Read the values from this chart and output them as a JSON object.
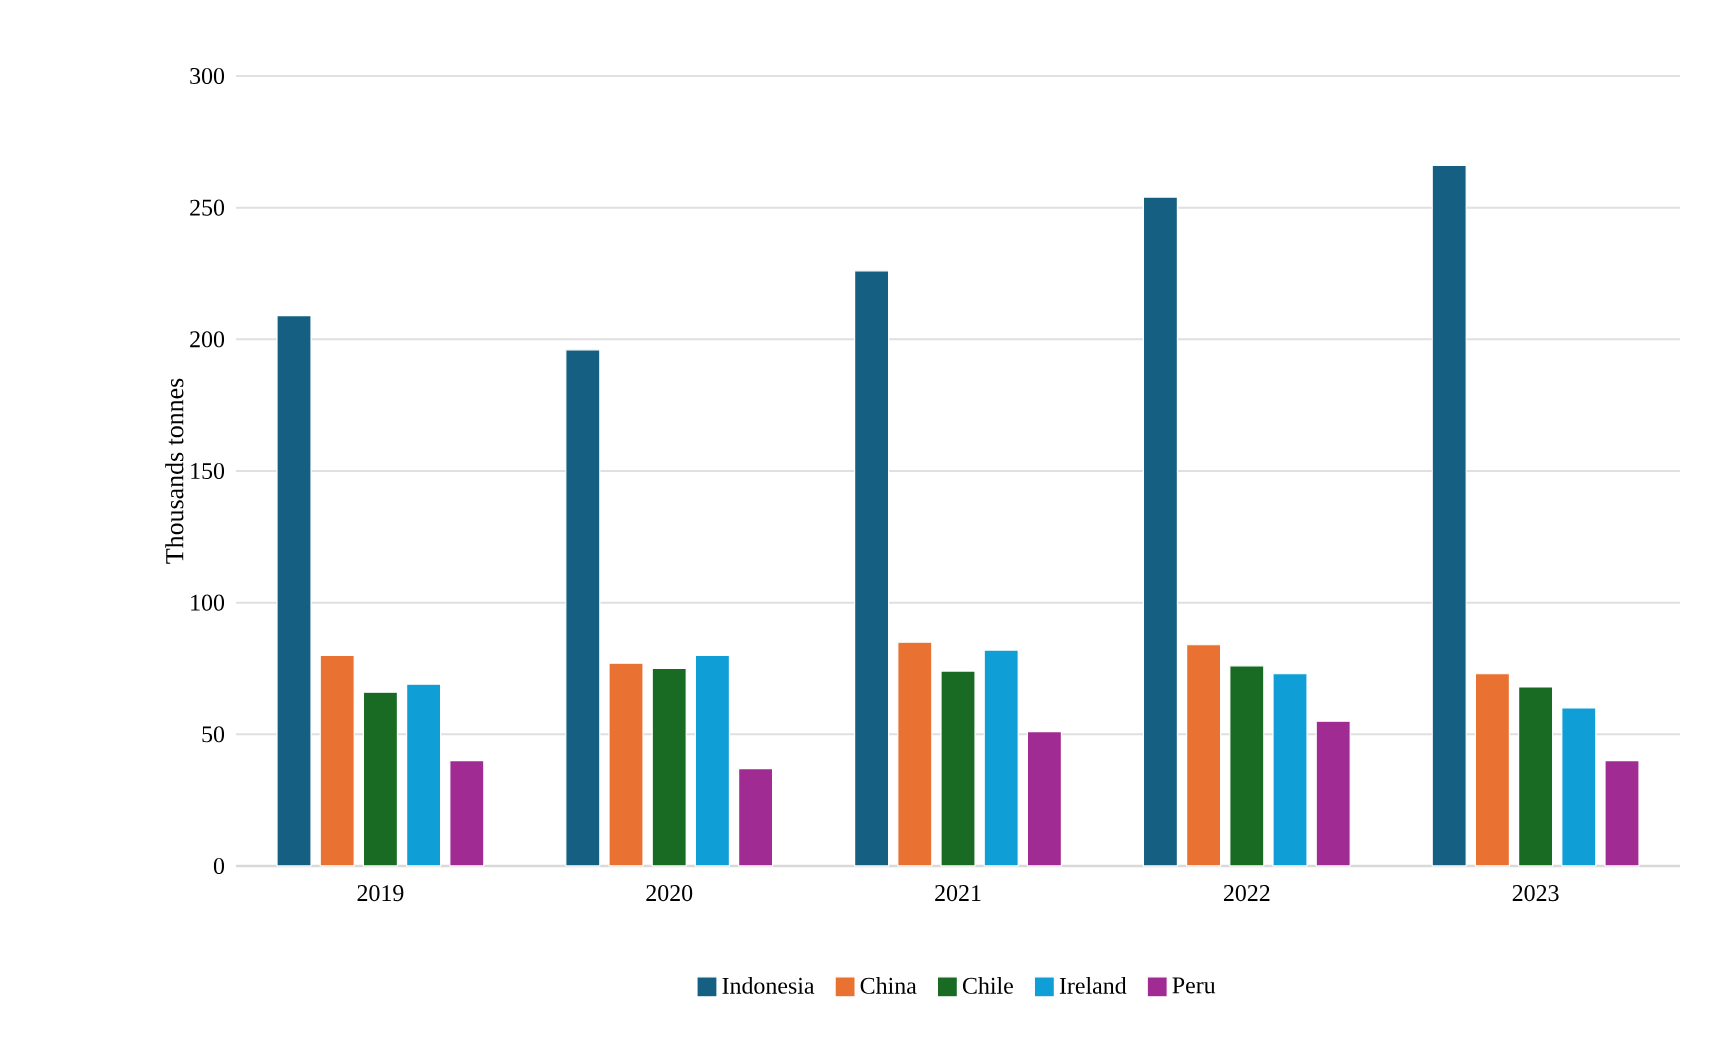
{
  "chart_data": {
    "type": "bar",
    "ylabel": "Thousands tonnes",
    "categories": [
      "2019",
      "2020",
      "2021",
      "2022",
      "2023"
    ],
    "series": [
      {
        "name": "Indonesia",
        "color": "#156082",
        "values": [
          209,
          196,
          226,
          254,
          266
        ]
      },
      {
        "name": "China",
        "color": "#e97132",
        "values": [
          80,
          77,
          85,
          84,
          73
        ]
      },
      {
        "name": "Chile",
        "color": "#196b24",
        "values": [
          66,
          75,
          74,
          76,
          68
        ]
      },
      {
        "name": "Ireland",
        "color": "#0f9ed5",
        "values": [
          69,
          80,
          82,
          73,
          60
        ]
      },
      {
        "name": "Peru",
        "color": "#a02b93",
        "values": [
          40,
          37,
          51,
          55,
          40
        ]
      }
    ],
    "ylim": [
      0,
      300
    ],
    "yticks": [
      0,
      50,
      100,
      150,
      200,
      250,
      300
    ],
    "grid": "y",
    "legend": "bottom"
  }
}
